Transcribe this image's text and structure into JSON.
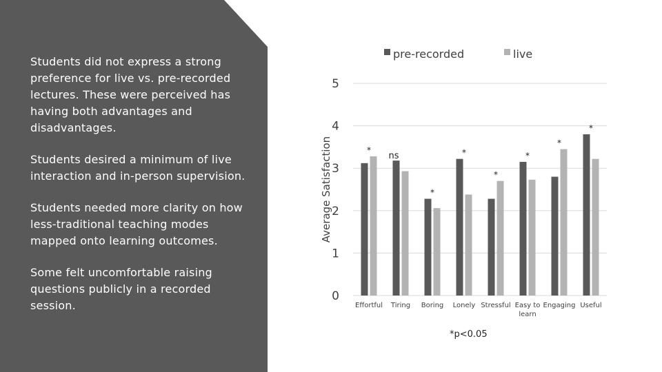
{
  "slide": {
    "bullets": [
      "Students did not express a strong preference for live vs. pre-recorded lectures. These were perceived has having both advantages and disadvantages.",
      "Students desired a minimum of live interaction and in-person supervision.",
      "Students needed more clarity on how less-traditional teaching modes mapped onto learning outcomes.",
      "Some felt uncomfortable raising questions publicly in a recorded session."
    ],
    "panel_color": "#595959",
    "footnote": "*p<0.05"
  },
  "chart_data": {
    "type": "bar",
    "categories": [
      "Effortful",
      "Tiring",
      "Boring",
      "Lonely",
      "Stressful",
      "Easy to learn",
      "Engaging",
      "Useful"
    ],
    "series": [
      {
        "name": "pre-recorded",
        "color": "#595959",
        "values": [
          3.12,
          3.18,
          2.28,
          3.22,
          2.28,
          3.15,
          2.8,
          3.8
        ]
      },
      {
        "name": "live",
        "color": "#b3b3b3",
        "values": [
          3.28,
          2.93,
          2.06,
          2.38,
          2.7,
          2.73,
          3.45,
          3.22
        ]
      }
    ],
    "significance": [
      "*",
      "ns",
      "*",
      "*",
      "*",
      "*",
      "*",
      "*"
    ],
    "ylabel": "Average Satisfaction",
    "xlabel": "",
    "ylim": [
      0,
      5
    ],
    "yticks": [
      0,
      1,
      2,
      3,
      4,
      5
    ],
    "grid": true,
    "legend_position": "top"
  }
}
